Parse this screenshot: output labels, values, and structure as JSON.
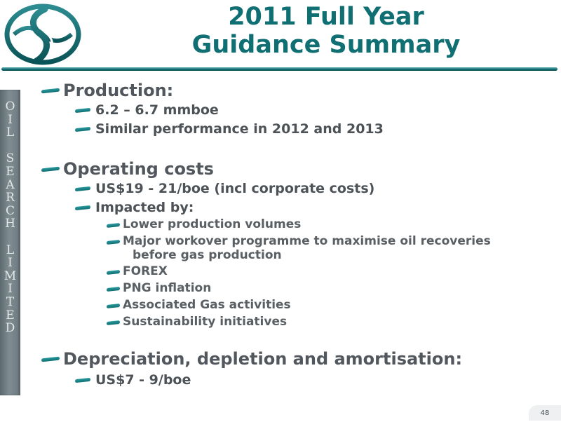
{
  "title": {
    "line1": "2011 Full Year",
    "line2": "Guidance Summary"
  },
  "sidebar": {
    "letters": [
      "O",
      "I",
      "L",
      "",
      "S",
      "E",
      "A",
      "R",
      "C",
      "H",
      "",
      "L",
      "I",
      "M",
      "I",
      "T",
      "E",
      "D"
    ]
  },
  "content": {
    "production": {
      "heading": "Production:",
      "items": [
        "6.2 – 6.7 mmboe",
        "Similar performance in 2012 and 2013"
      ]
    },
    "operating": {
      "heading": "Operating costs",
      "items": [
        "US$19 - 21/boe (incl corporate costs)",
        "Impacted by:"
      ],
      "sub_items": [
        "Lower production volumes",
        "Major workover programme to maximise oil recoveries",
        "before gas production",
        "FOREX",
        "PNG inflation",
        "Associated Gas activities",
        "Sustainability initiatives"
      ]
    },
    "depreciation": {
      "heading": "Depreciation, depletion and amortisation:",
      "items": [
        "US$7 - 9/boe"
      ]
    }
  },
  "page_number": "48",
  "colors": {
    "accent": "#0f6f73",
    "text": "#4a4e53",
    "sidebar": "#7f8d93"
  },
  "icons": {
    "logo": "oil-search-logo-icon",
    "bullet": "dash-bullet-icon"
  }
}
